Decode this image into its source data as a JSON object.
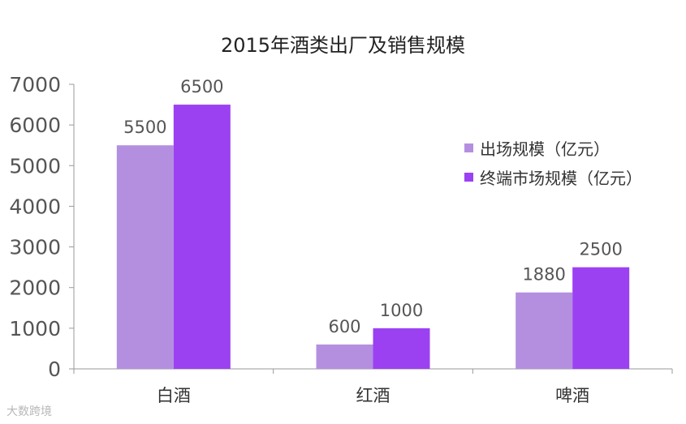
{
  "chart_data": {
    "type": "bar",
    "title": "2015年酒类出厂及销售规模",
    "categories": [
      "白酒",
      "红酒",
      "啤酒"
    ],
    "series": [
      {
        "name": "出场规模（亿元）",
        "color": "#b48fe0",
        "values": [
          5500,
          600,
          1880
        ]
      },
      {
        "name": "终端市场规模（亿元）",
        "color": "#9b41f2",
        "values": [
          6500,
          1000,
          2500
        ]
      }
    ],
    "ylim": [
      0,
      7000
    ],
    "yticks": [
      0,
      1000,
      2000,
      3000,
      4000,
      5000,
      6000,
      7000
    ],
    "grid": false,
    "legend_position": "right"
  },
  "watermark": "大数跨境"
}
